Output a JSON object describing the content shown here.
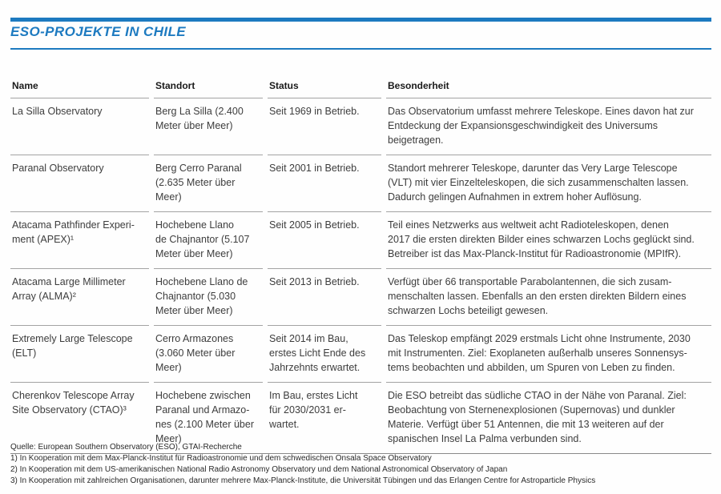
{
  "title": "ESO-PROJEKTE IN CHILE",
  "colors": {
    "accent_blue": "#1d7ac0",
    "rule_gray": "#a3a3a3",
    "body_text": "#3d3d3d"
  },
  "table": {
    "headers": [
      "Name",
      "Standort",
      "Status",
      "Besonderheit"
    ],
    "rows": [
      {
        "name": "La Silla Observatory",
        "standort": "Berg La Silla (2.400\nMeter über Meer)",
        "status": "Seit 1969 in Betrieb.",
        "besonderheit": "Das Observatorium umfasst mehrere Teleskope. Eines davon hat zur\nEntdeckung der Expansionsgeschwindigkeit des Universums beigetragen."
      },
      {
        "name": "Paranal Observatory",
        "standort": "Berg Cerro Paranal\n(2.635 Meter über\nMeer)",
        "status": "Seit 2001 in Betrieb.",
        "besonderheit": "Standort mehrerer Teleskope, darunter das Very Large Telescope\n(VLT) mit vier Einzelteleskopen, die sich zusammenschalten lassen.\nDadurch gelingen Aufnahmen in extrem hoher Auflösung."
      },
      {
        "name": "Atacama Pathfinder Experi-\nment (APEX)¹",
        "standort": "Hochebene Llano\nde Chajnantor (5.107\nMeter über Meer)",
        "status": "Seit 2005 in Betrieb.",
        "besonderheit": "Teil eines Netzwerks aus weltweit acht Radioteleskopen, denen\n2017 die ersten direkten Bilder eines schwarzen Lochs geglückt sind.\nBetreiber ist das Max-Planck-Institut für Radioastronomie (MPIfR)."
      },
      {
        "name": "Atacama Large Millimeter\nArray (ALMA)²",
        "standort": "Hochebene Llano de\nChajnantor (5.030\nMeter über Meer)",
        "status": "Seit 2013 in Betrieb.",
        "besonderheit": "Verfügt über 66 transportable Parabolantennen, die sich zusam-\nmenschalten lassen. Ebenfalls an den ersten direkten Bildern eines\nschwarzen Lochs beteiligt gewesen."
      },
      {
        "name": "Extremely Large Telescope\n(ELT)",
        "standort": "Cerro Armazones\n(3.060 Meter über\nMeer)",
        "status": "Seit 2014 im Bau,\nerstes Licht Ende des\nJahrzehnts erwartet.",
        "besonderheit": "Das Teleskop empfängt 2029 erstmals Licht ohne Instrumente, 2030\nmit Instrumenten. Ziel: Exoplaneten außerhalb unseres Sonnensys-\ntems beobachten und abbilden, um Spuren von Leben zu finden."
      },
      {
        "name": "Cherenkov Telescope Array\nSite Observatory (CTAO)³",
        "standort": "Hochebene zwischen\nParanal und Armazo-\nnes (2.100 Meter über\nMeer)",
        "status": "Im Bau, erstes Licht\nfür 2030/2031 er-\nwartet.",
        "besonderheit": "Die ESO betreibt das südliche CTAO in der Nähe von Paranal. Ziel:\nBeobachtung von Sternenexplosionen (Supernovas) und dunkler\nMaterie. Verfügt über 51 Antennen, die mit 13 weiteren auf der\nspanischen Insel La Palma verbunden sind."
      }
    ]
  },
  "footnotes": [
    "Quelle: European Southern Observatory (ESO), GTAI-Recherche",
    "1) In Kooperation mit dem Max-Planck-Institut für Radioastronomie und dem schwedischen Onsala Space Observatory",
    "2) In Kooperation mit dem US-amerikanischen National Radio Astronomy Observatory und dem National Astronomical Observatory of Japan",
    "3) In Kooperation mit zahlreichen Organisationen, darunter mehrere Max-Planck-Institute, die Universität Tübingen und das Erlangen Centre for Astroparticle Physics"
  ]
}
